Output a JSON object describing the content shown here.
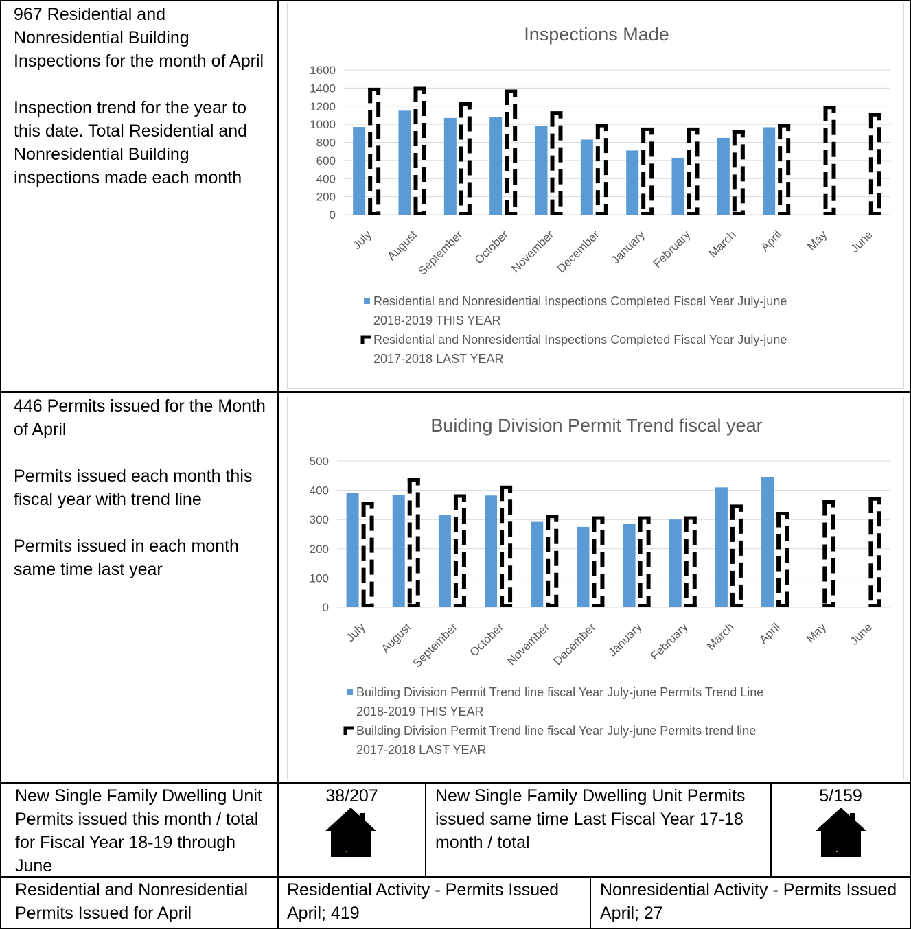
{
  "row1": {
    "line_a": "967 Residential and\nNonresidential Building\nInspections for the month of April",
    "line_b": "Inspection trend for the year to\nthis date.  Total Residential and\nNonresidential Building\ninspections made each month"
  },
  "row2": {
    "line_a": "446 Permits issued for the Month\nof April",
    "line_b": "Permits issued each month this\nfiscal year with trend line",
    "line_c": "Permits issued in each month\nsame time last year"
  },
  "row3": {
    "left": "New Single Family Dwelling Unit\nPermits issued this month / total\nfor Fiscal Year 18-19 through\nJune",
    "value_this_year": "38/207",
    "middle": "New Single Family Dwelling Unit Permits\nissued same time Last Fiscal Year 17-18\nmonth / total",
    "value_last_year": "5/159",
    "icon": "house-icon"
  },
  "row4": {
    "left": "Residential and Nonresidential\nPermits Issued for April",
    "middle": "Residential Activity - Permits Issued\nApril; 419",
    "right": "Nonresidential Activity - Permits Issued\nApril; 27"
  },
  "colors": {
    "this_year": "#5b9bd5",
    "last_year": "#000000",
    "grid": "#d9d9d9",
    "axis_text": "#595959"
  },
  "chart_data": [
    {
      "type": "bar",
      "title": "Inspections Made",
      "categories": [
        "July",
        "August",
        "September",
        "October",
        "November",
        "December",
        "January",
        "February",
        "March",
        "April",
        "May",
        "June"
      ],
      "ylim": [
        0,
        1600
      ],
      "yticks": [
        0,
        200,
        400,
        600,
        800,
        1000,
        1200,
        1400,
        1600
      ],
      "grid": true,
      "legend_position": "bottom",
      "series": [
        {
          "name": "Residential and Nonresidential Inspections Completed Fiscal Year July-june 2018-2019 THIS YEAR",
          "style": "solid",
          "values": [
            970,
            1150,
            1070,
            1080,
            980,
            830,
            710,
            630,
            850,
            967,
            null,
            null
          ]
        },
        {
          "name": "Residential and Nonresidential Inspections Completed Fiscal Year July-june 2017-2018 LAST YEAR",
          "style": "dashed-outline",
          "values": [
            1400,
            1410,
            1240,
            1380,
            1140,
            1000,
            960,
            960,
            930,
            1000,
            1200,
            1120
          ]
        }
      ]
    },
    {
      "type": "bar",
      "title": "Buiding Division Permit Trend fiscal year",
      "categories": [
        "July",
        "August",
        "September",
        "October",
        "November",
        "December",
        "January",
        "February",
        "March",
        "April",
        "May",
        "June"
      ],
      "ylim": [
        0,
        500
      ],
      "yticks": [
        0,
        100,
        200,
        300,
        400,
        500
      ],
      "grid": true,
      "legend_position": "bottom",
      "series": [
        {
          "name": "Building Division Permit Trend line fiscal Year July-june Permits Trend Line 2018-2019 THIS YEAR",
          "style": "solid",
          "values": [
            390,
            385,
            315,
            382,
            292,
            275,
            285,
            300,
            410,
            446,
            null,
            null
          ]
        },
        {
          "name": "Building Division Permit Trend line fiscal Year July-june Permits trend line 2017-2018 LAST YEAR",
          "style": "dashed-outline",
          "values": [
            360,
            440,
            385,
            415,
            315,
            310,
            310,
            310,
            350,
            325,
            365,
            375
          ]
        }
      ]
    }
  ]
}
